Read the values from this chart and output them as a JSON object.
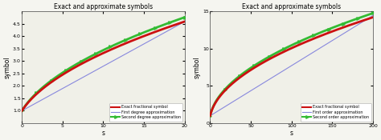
{
  "title": "Exact and approximate symbols",
  "xlabel": "s",
  "ylabel": "symbol",
  "plots": [
    {
      "xlim": [
        0,
        20
      ],
      "ylim": [
        0.5,
        5
      ],
      "yticks": [
        1.0,
        1.5,
        2.0,
        2.5,
        3.0,
        3.5,
        4.0,
        4.5
      ],
      "xticks": [
        0,
        5,
        10,
        15,
        20
      ],
      "legend": [
        "Exact fractional symbol",
        "First degree approximation",
        "Second degree approximation"
      ],
      "smax": 20,
      "first_slope": 0.179,
      "first_intercept": 1.0,
      "second_scale": 1.08
    },
    {
      "xlim": [
        0,
        200
      ],
      "ylim": [
        0,
        15
      ],
      "yticks": [
        0,
        5,
        10,
        15
      ],
      "xticks": [
        0,
        50,
        100,
        150,
        200
      ],
      "legend": [
        "Exact fractional symbol",
        "First order approximation",
        "Second order approximation"
      ],
      "smax": 200,
      "first_slope": 0.0671,
      "first_intercept": 1.0,
      "second_scale": 1.08
    }
  ],
  "colors": {
    "exact": "#cc1111",
    "first": "#8888dd",
    "second": "#33bb33"
  },
  "bg_color": "#f5f5f0",
  "axes_bg": "#f0f0e8"
}
